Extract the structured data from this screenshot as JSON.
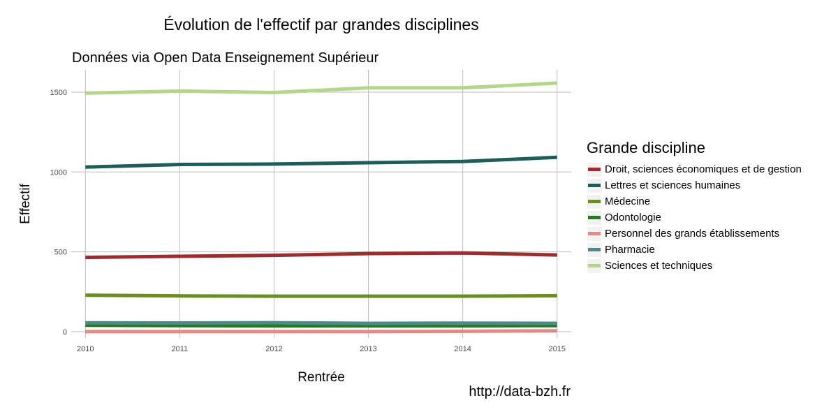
{
  "title": "Évolution de l'effectif par grandes disciplines",
  "subtitle": "Données via Open Data Enseignement Supérieur",
  "credit": "http://data-bzh.fr",
  "chart_data": {
    "type": "line",
    "title": "Évolution de l'effectif par grandes disciplines",
    "subtitle": "Données via Open Data Enseignement Supérieur",
    "xlabel": "Rentrée",
    "ylabel": "Effectif",
    "x": [
      2010,
      2011,
      2012,
      2013,
      2014,
      2015
    ],
    "xlim": [
      2009.85,
      2015.15
    ],
    "ylim": [
      -40,
      1640
    ],
    "yticks": [
      0,
      500,
      1000,
      1500
    ],
    "grid": true,
    "legend_title": "Grande discipline",
    "legend_position": "right",
    "series": [
      {
        "name": "Droit, sciences économiques et de gestion",
        "color": "#9b2d30",
        "values": [
          465,
          472,
          478,
          489,
          493,
          480
        ]
      },
      {
        "name": "Lettres et sciences humaines",
        "color": "#1e5d59",
        "values": [
          1031,
          1047,
          1050,
          1058,
          1066,
          1092
        ]
      },
      {
        "name": "Médecine",
        "color": "#6b8e23",
        "values": [
          228,
          224,
          222,
          222,
          222,
          225
        ]
      },
      {
        "name": "Odontologie",
        "color": "#237a23",
        "values": [
          40,
          38,
          36,
          36,
          36,
          38
        ]
      },
      {
        "name": "Personnel des grands établissements",
        "color": "#e08a8a",
        "values": [
          0,
          0,
          0,
          0,
          2,
          5
        ]
      },
      {
        "name": "Pharmacie",
        "color": "#4f8a8b",
        "values": [
          55,
          54,
          56,
          52,
          53,
          52
        ]
      },
      {
        "name": "Sciences et techniques",
        "color": "#b5d68a",
        "values": [
          1494,
          1507,
          1498,
          1527,
          1527,
          1557
        ]
      }
    ]
  }
}
